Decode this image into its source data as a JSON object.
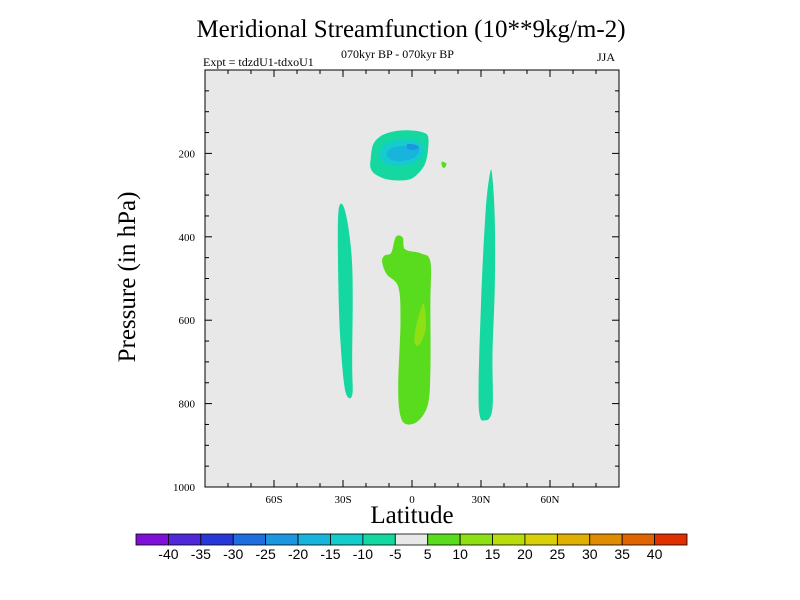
{
  "chart_data": {
    "type": "heatmap",
    "title": "Meridional Streamfunction (10**9kg/m-2)",
    "left_label": "Expt = tdzdU1-tdxoU1",
    "center_label": "070kyr BP - 070kyr BP",
    "right_label": "JJA",
    "xlabel": "Latitude",
    "ylabel": "Pressure (in hPa)",
    "xlim": [
      -90,
      90
    ],
    "ylim": [
      1000,
      0
    ],
    "x_ticks": [
      {
        "value": -60,
        "label": "60S"
      },
      {
        "value": -30,
        "label": "30S"
      },
      {
        "value": 0,
        "label": "0"
      },
      {
        "value": 30,
        "label": "30N"
      },
      {
        "value": 60,
        "label": "60N"
      }
    ],
    "y_ticks": [
      {
        "value": 200,
        "label": "200"
      },
      {
        "value": 400,
        "label": "400"
      },
      {
        "value": 600,
        "label": "600"
      },
      {
        "value": 800,
        "label": "800"
      },
      {
        "value": 1000,
        "label": "1000"
      }
    ],
    "background_color": "#e8e8e8",
    "colorbar": {
      "levels": [
        -40,
        -35,
        -30,
        -25,
        -20,
        -15,
        -10,
        -5,
        5,
        10,
        15,
        20,
        25,
        30,
        35,
        40
      ],
      "labels": [
        "-40",
        "-35",
        "-30",
        "-25",
        "-20",
        "-15",
        "-10",
        "-5",
        "5",
        "10",
        "15",
        "20",
        "25",
        "30",
        "35",
        "40"
      ],
      "colors": [
        "#8010d8",
        "#5028d8",
        "#2838d8",
        "#1e6ee0",
        "#1c96e0",
        "#18b4dc",
        "#14cccc",
        "#14d8a0",
        "#e8e8e8",
        "#5adc1e",
        "#8ee014",
        "#b8dc0c",
        "#d8d008",
        "#e0b000",
        "#e08c00",
        "#e06400",
        "#e03000"
      ]
    },
    "contours": [
      {
        "name": "upper-cell-outer",
        "class": "-10 to -5",
        "color": "#14d8a0",
        "points": [
          [
            -18,
            215
          ],
          [
            -17,
            180
          ],
          [
            -14,
            160
          ],
          [
            -10,
            150
          ],
          [
            -5,
            145
          ],
          [
            0,
            145
          ],
          [
            5,
            150
          ],
          [
            7,
            160
          ],
          [
            7,
            190
          ],
          [
            6,
            220
          ],
          [
            4,
            240
          ],
          [
            0,
            260
          ],
          [
            -5,
            265
          ],
          [
            -11,
            262
          ],
          [
            -16,
            250
          ],
          [
            -18,
            235
          ]
        ]
      },
      {
        "name": "upper-cell-mid",
        "class": "-15 to -10",
        "color": "#14cccc",
        "points": [
          [
            -14,
            200
          ],
          [
            -12,
            180
          ],
          [
            -8,
            170
          ],
          [
            -2,
            168
          ],
          [
            3,
            172
          ],
          [
            5,
            190
          ],
          [
            4,
            210
          ],
          [
            0,
            225
          ],
          [
            -5,
            230
          ],
          [
            -10,
            228
          ],
          [
            -13,
            218
          ]
        ]
      },
      {
        "name": "upper-cell-inner",
        "class": "-20 to -15",
        "color": "#18b4dc",
        "points": [
          [
            -11,
            200
          ],
          [
            -8,
            185
          ],
          [
            -2,
            183
          ],
          [
            3,
            190
          ],
          [
            1,
            210
          ],
          [
            -4,
            218
          ],
          [
            -9,
            215
          ]
        ]
      },
      {
        "name": "upper-cell-core",
        "class": "-25 to -20",
        "color": "#1c96e0",
        "points": [
          [
            -2,
            178
          ],
          [
            2,
            180
          ],
          [
            3,
            188
          ],
          [
            0,
            192
          ],
          [
            -2,
            188
          ]
        ]
      },
      {
        "name": "southern-column",
        "class": "-10 to -5",
        "color": "#14d8a0",
        "points": [
          [
            -32,
            340
          ],
          [
            -29,
            340
          ],
          [
            -26,
            470
          ],
          [
            -26,
            700
          ],
          [
            -26,
            780
          ],
          [
            -29,
            770
          ],
          [
            -31,
            660
          ],
          [
            -32,
            520
          ]
        ]
      },
      {
        "name": "northern-column",
        "class": "-10 to -5",
        "color": "#14d8a0",
        "points": [
          [
            34,
            245
          ],
          [
            35,
            260
          ],
          [
            36,
            360
          ],
          [
            36,
            520
          ],
          [
            35,
            680
          ],
          [
            35,
            810
          ],
          [
            32,
            840
          ],
          [
            29,
            805
          ],
          [
            30,
            560
          ],
          [
            32,
            340
          ]
        ]
      },
      {
        "name": "central-column",
        "class": "5 to 10",
        "color": "#5adc1e",
        "points": [
          [
            -7,
            400
          ],
          [
            -4,
            402
          ],
          [
            -3,
            430
          ],
          [
            4,
            440
          ],
          [
            8,
            460
          ],
          [
            8,
            560
          ],
          [
            8,
            720
          ],
          [
            7,
            800
          ],
          [
            3,
            840
          ],
          [
            -2,
            850
          ],
          [
            -5,
            830
          ],
          [
            -6,
            760
          ],
          [
            -5,
            600
          ],
          [
            -6,
            520
          ],
          [
            -11,
            490
          ],
          [
            -13,
            460
          ],
          [
            -12,
            445
          ],
          [
            -9,
            438
          ]
        ]
      },
      {
        "name": "central-column-core",
        "class": "10 to 15",
        "color": "#8ee014",
        "points": [
          [
            5,
            560
          ],
          [
            6,
            620
          ],
          [
            3,
            660
          ],
          [
            1,
            650
          ],
          [
            2,
            610
          ]
        ]
      },
      {
        "name": "small-spot",
        "class": "5 to 10",
        "color": "#5adc1e",
        "points": [
          [
            13,
            220
          ],
          [
            15,
            225
          ],
          [
            14,
            235
          ],
          [
            13,
            230
          ]
        ]
      }
    ]
  }
}
